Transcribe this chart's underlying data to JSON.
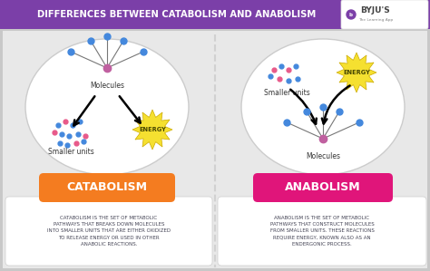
{
  "title": "DIFFERENCES BETWEEN CATABOLISM AND ANABOLISM",
  "title_bg": "#7b3fa8",
  "title_color": "#ffffff",
  "bg_color": "#c8c8c8",
  "panel_bg": "#e8e8e8",
  "divider_color": "#bbbbbb",
  "left_label": "CATABOLISM",
  "right_label": "ANABOLISM",
  "left_label_color": "#f47c20",
  "right_label_color": "#e0157a",
  "left_text": "CATABOLISM IS THE SET OF METABOLIC\nPATHWAYS THAT BREAKS DOWN MOLECULES\nINTO SMALLER UNITS THAT ARE EITHER OXIDIZED\nTO RELEASE ENERGY OR USED IN OTHER\nANABOLIC REACTIONS.",
  "right_text": "ANABOLISM IS THE SET OF METABOLIC\nPATHWAYS THAT CONSTRUCT MOLECULES\nFROM SMALLER UNITS. THESE REACTIONS\nREQUIRE ENERGY, KNOWN ALSO AS AN\nENDERGONIC PROCESS.",
  "text_color": "#444455",
  "energy_color": "#f5e030",
  "energy_text": "ENERGY",
  "molecules_label": "Molecules",
  "smaller_units_label": "Smaller units",
  "dot_blue": "#4488dd",
  "dot_pink": "#e85a8a",
  "dot_center": "#c060a0",
  "dot_gray": "#aaaaaa"
}
